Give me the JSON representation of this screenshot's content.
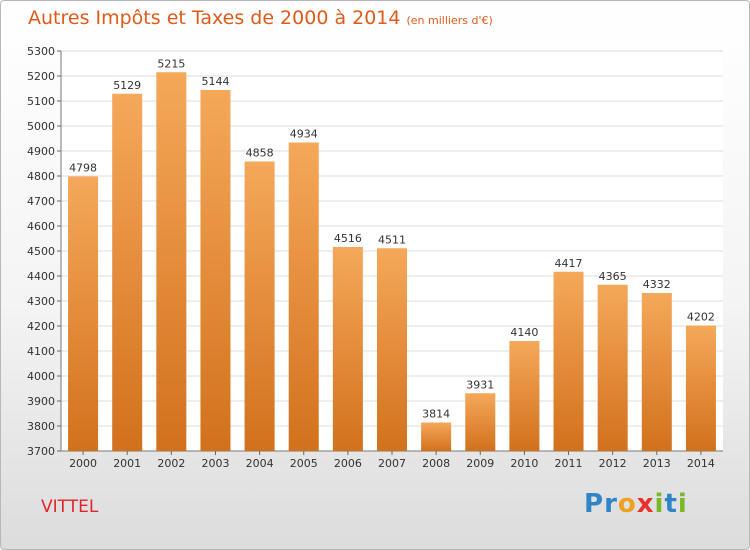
{
  "chart_data": {
    "type": "bar",
    "title": "Autres Impôts et Taxes de 2000 à 2014",
    "subtitle": "(en milliers d'€)",
    "categories": [
      "2000",
      "2001",
      "2002",
      "2003",
      "2004",
      "2005",
      "2006",
      "2007",
      "2008",
      "2009",
      "2010",
      "2011",
      "2012",
      "2013",
      "2014"
    ],
    "values": [
      4798,
      5129,
      5215,
      5144,
      4858,
      4934,
      4516,
      4511,
      3814,
      3931,
      4140,
      4417,
      4365,
      4332,
      4202
    ],
    "ylim": [
      3700,
      5300
    ],
    "ytick_step": 100,
    "grid": true,
    "bar_color_top": "#f5a85a",
    "bar_color_bottom": "#d2711c"
  },
  "footer": {
    "city": "VITTEL",
    "brand_letters": [
      {
        "ch": "P",
        "color": "#2e86c8"
      },
      {
        "ch": "r",
        "color": "#2e86c8"
      },
      {
        "ch": "o",
        "color": "#f0a020"
      },
      {
        "ch": "x",
        "color": "#e8332a"
      },
      {
        "ch": "i",
        "color": "#7ab82a"
      },
      {
        "ch": "t",
        "color": "#2e86c8"
      },
      {
        "ch": "i",
        "color": "#7ab82a"
      }
    ]
  }
}
